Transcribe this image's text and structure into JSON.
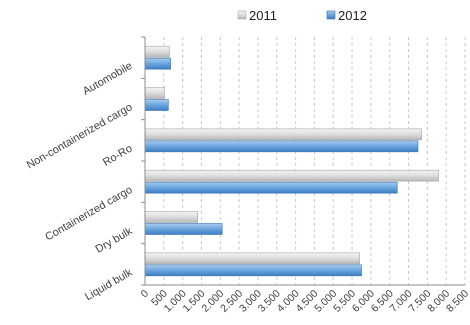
{
  "chart_data": {
    "type": "bar",
    "orientation": "horizontal",
    "categories": [
      "Automobile",
      "Non-containerized cargo",
      "Ro-Ro",
      "Containerized cargo",
      "Dry bulk",
      "Liquid bulk"
    ],
    "series": [
      {
        "name": "2011",
        "values": [
          650,
          520,
          7350,
          7800,
          1400,
          5700
        ],
        "color": "#d4d4d4"
      },
      {
        "name": "2012",
        "values": [
          680,
          620,
          7250,
          6700,
          2050,
          5750
        ],
        "color": "#5b9bd5"
      }
    ],
    "xticks": [
      "0",
      "500",
      "1.000",
      "1.500",
      "2.000",
      "2.500",
      "3.000",
      "3.500",
      "4.000",
      "4.500",
      "5.000",
      "5.500",
      "6.000",
      "6.500",
      "7.000",
      "7.500",
      "8.000",
      "8.500"
    ],
    "xlim": [
      0,
      8500
    ],
    "xlabel": "",
    "ylabel": "",
    "grid": true,
    "legend": "top"
  }
}
